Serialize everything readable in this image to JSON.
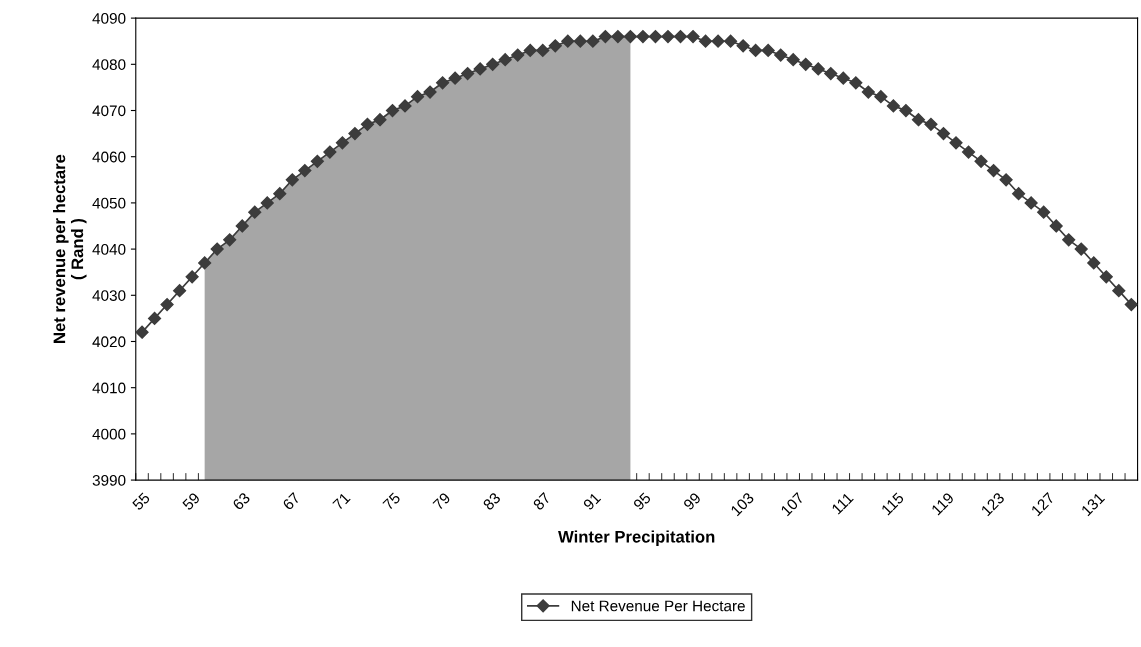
{
  "chart_data": {
    "type": "line",
    "xlabel": "Winter Precipitation",
    "ylabel": "Net revenue per hectare\n( Rand )",
    "categories": [
      "55",
      null,
      null,
      null,
      "59",
      null,
      null,
      null,
      "63",
      null,
      null,
      null,
      "67",
      null,
      null,
      null,
      "71",
      null,
      null,
      null,
      "75",
      null,
      null,
      null,
      "79",
      null,
      null,
      null,
      "83",
      null,
      null,
      null,
      "87",
      null,
      null,
      null,
      "91",
      null,
      null,
      null,
      "95",
      null,
      null,
      null,
      "99",
      null,
      null,
      null,
      "103",
      null,
      null,
      null,
      "107",
      null,
      null,
      null,
      "111",
      null,
      null,
      null,
      "115",
      null,
      null,
      null,
      "119",
      null,
      null,
      null,
      "123",
      null,
      null,
      null,
      "127",
      null,
      null,
      null,
      "131",
      null,
      null,
      null
    ],
    "series": [
      {
        "type": "area",
        "color": "#a6a6a6",
        "values": [
          null,
          null,
          null,
          null,
          null,
          4037,
          4040,
          4042,
          4045,
          4048,
          4050,
          4052,
          4055,
          4057,
          4059,
          4061,
          4063,
          4065,
          4067,
          4068,
          4070,
          4071,
          4073,
          4074,
          4076,
          4077,
          4078,
          4079,
          4080,
          4081,
          4082,
          4083,
          4083,
          4084,
          4085,
          4085,
          4085,
          4086,
          4086,
          4086,
          null,
          null,
          null,
          null,
          null,
          null,
          null,
          null,
          null,
          null,
          null,
          null,
          null,
          null,
          null,
          null,
          null,
          null,
          null,
          null,
          null,
          null,
          null,
          null,
          null,
          null,
          null,
          null,
          null,
          null,
          null,
          null,
          null,
          null,
          null,
          null,
          null,
          null,
          null,
          null
        ]
      },
      {
        "name": "Net Revenue Per Hectare",
        "color": "#3c3c3c",
        "marker": "diamond",
        "values": [
          4022,
          4025,
          4028,
          4031,
          4034,
          4037,
          4040,
          4042,
          4045,
          4048,
          4050,
          4052,
          4055,
          4057,
          4059,
          4061,
          4063,
          4065,
          4067,
          4068,
          4070,
          4071,
          4073,
          4074,
          4076,
          4077,
          4078,
          4079,
          4080,
          4081,
          4082,
          4083,
          4083,
          4084,
          4085,
          4085,
          4085,
          4086,
          4086,
          4086,
          4086,
          4086,
          4086,
          4086,
          4086,
          4085,
          4085,
          4085,
          4084,
          4083,
          4083,
          4082,
          4081,
          4080,
          4079,
          4078,
          4077,
          4076,
          4074,
          4073,
          4071,
          4070,
          4068,
          4067,
          4065,
          4063,
          4061,
          4059,
          4057,
          4055,
          4052,
          4050,
          4048,
          4045,
          4042,
          4040,
          4037,
          4034,
          4031,
          4028
        ]
      }
    ],
    "ylim": [
      3990,
      4090
    ],
    "yticks": [
      3990,
      4000,
      4010,
      4020,
      4030,
      4040,
      4050,
      4060,
      4070,
      4080,
      4090
    ],
    "grid": false,
    "legend": "bottom",
    "line_style": "solid"
  }
}
